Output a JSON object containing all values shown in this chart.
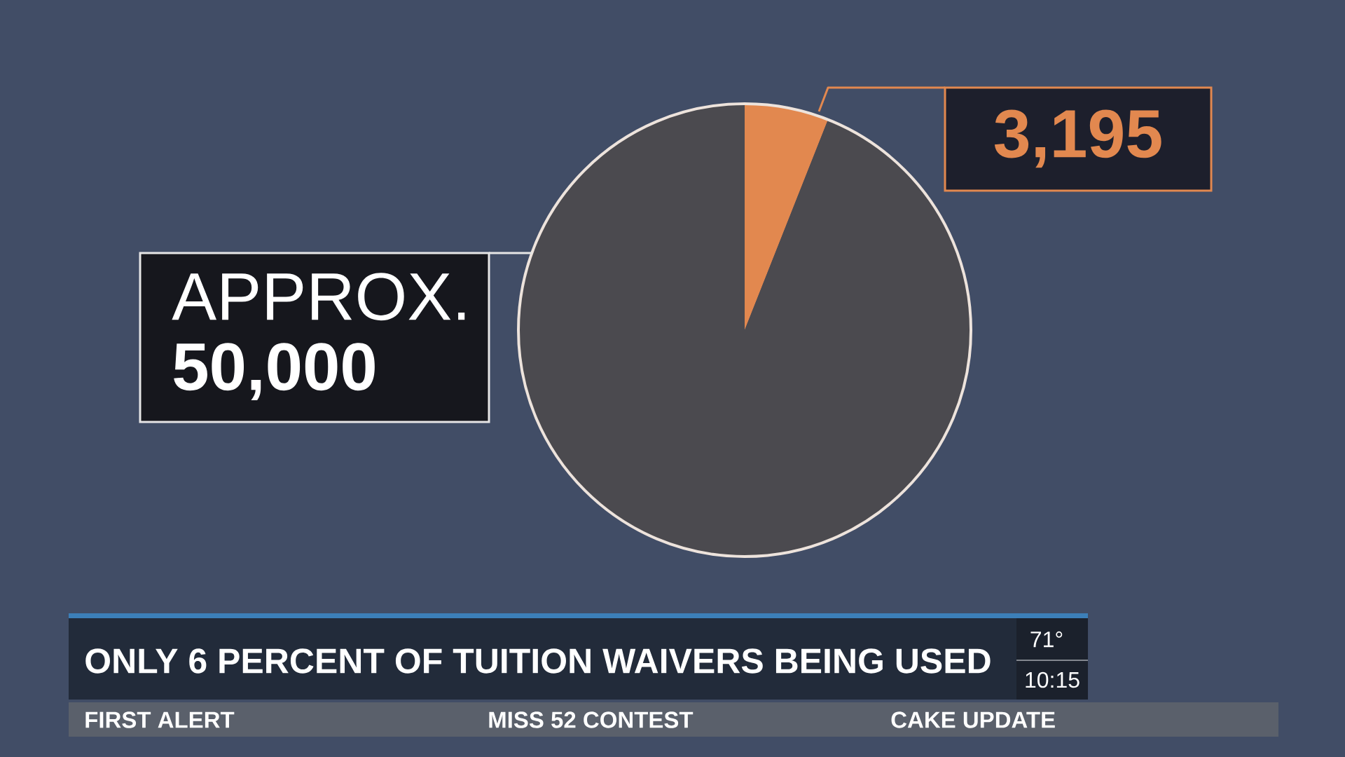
{
  "chart_data": {
    "type": "pie",
    "title": "ONLY 6 PERCENT OF TUITION WAIVERS BEING USED",
    "categories": [
      null,
      null
    ],
    "values": [
      3195,
      50000
    ],
    "colors": [
      "#e2884f",
      "#4b4a4f"
    ],
    "value_labels": [
      "3,195",
      "APPROX. **50,000**"
    ],
    "annotations": [
      "71°",
      "10:15",
      "FIRST ALERT",
      "MISS 52 CONTEST",
      "CAKE UPDATE"
    ]
  }
}
